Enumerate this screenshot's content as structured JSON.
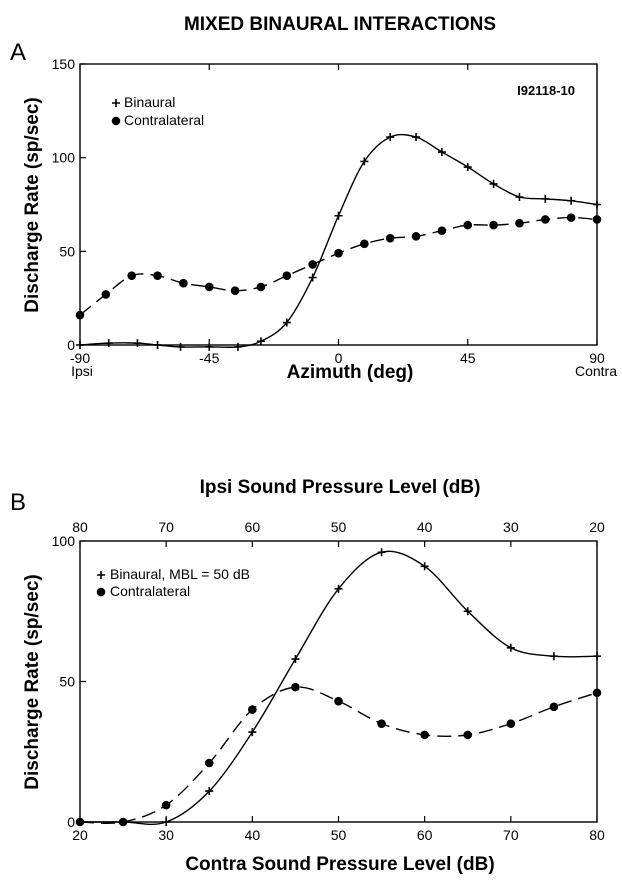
{
  "figure": {
    "title": "MIXED BINAURAL INTERACTIONS"
  },
  "chart_data": [
    {
      "type": "line",
      "panel_label": "A",
      "annotation": "I92118-10",
      "xlabel": "Azimuth (deg)",
      "ylabel": "Discharge Rate (sp/sec)",
      "xlim": [
        -90,
        90
      ],
      "ylim": [
        0,
        150
      ],
      "x_ticks": [
        "-90",
        "-45",
        "0",
        "45",
        "90"
      ],
      "y_ticks": [
        "0",
        "50",
        "100",
        "150"
      ],
      "x_end_labels": {
        "left": "Ipsi",
        "right": "Contra"
      },
      "grid": false,
      "legend": "top-left",
      "series": [
        {
          "name": "Binaural",
          "marker": "plus",
          "line": "solid",
          "x": [
            -90,
            -80,
            -70,
            -63,
            -55,
            -45,
            -35,
            -27,
            -18,
            -9,
            0,
            9,
            18,
            27,
            36,
            45,
            54,
            63,
            72,
            81,
            90
          ],
          "y": [
            0,
            1,
            1,
            0,
            -1,
            -1,
            -1,
            2,
            12,
            36,
            69,
            98,
            111,
            111,
            103,
            95,
            86,
            79,
            78,
            77,
            75
          ]
        },
        {
          "name": "Contralateral",
          "marker": "circle",
          "line": "dashed",
          "x": [
            -90,
            -81,
            -72,
            -63,
            -54,
            -45,
            -36,
            -27,
            -18,
            -9,
            0,
            9,
            18,
            27,
            36,
            45,
            54,
            63,
            72,
            81,
            90
          ],
          "y": [
            16,
            27,
            37,
            37,
            33,
            31,
            29,
            31,
            37,
            43,
            49,
            54,
            57,
            58,
            61,
            64,
            64,
            65,
            67,
            68,
            67
          ]
        }
      ]
    },
    {
      "type": "line",
      "panel_label": "B",
      "xlabel": "Contra Sound Pressure Level (dB)",
      "x2label": "Ipsi Sound Pressure Level (dB)",
      "ylabel": "Discharge Rate (sp/sec)",
      "xlim": [
        20,
        80
      ],
      "ylim": [
        0,
        100
      ],
      "x_ticks": [
        "20",
        "30",
        "40",
        "50",
        "60",
        "70",
        "80"
      ],
      "x2_ticks": [
        "80",
        "70",
        "60",
        "50",
        "40",
        "30",
        "20"
      ],
      "y_ticks": [
        "0",
        "50",
        "100"
      ],
      "grid": false,
      "legend": "top-left",
      "series": [
        {
          "name": "Binaural, MBL = 50 dB",
          "marker": "plus",
          "line": "solid",
          "x": [
            20,
            25,
            30,
            35,
            40,
            45,
            50,
            55,
            60,
            65,
            70,
            75,
            80
          ],
          "y": [
            0,
            0,
            0,
            11,
            32,
            58,
            83,
            96,
            91,
            75,
            62,
            59,
            59
          ]
        },
        {
          "name": "Contralateral",
          "marker": "circle",
          "line": "dashed",
          "x": [
            20,
            25,
            30,
            35,
            40,
            45,
            50,
            55,
            60,
            65,
            70,
            75,
            80
          ],
          "y": [
            0,
            0,
            6,
            21,
            40,
            48,
            43,
            35,
            31,
            31,
            35,
            41,
            46
          ]
        }
      ]
    }
  ]
}
